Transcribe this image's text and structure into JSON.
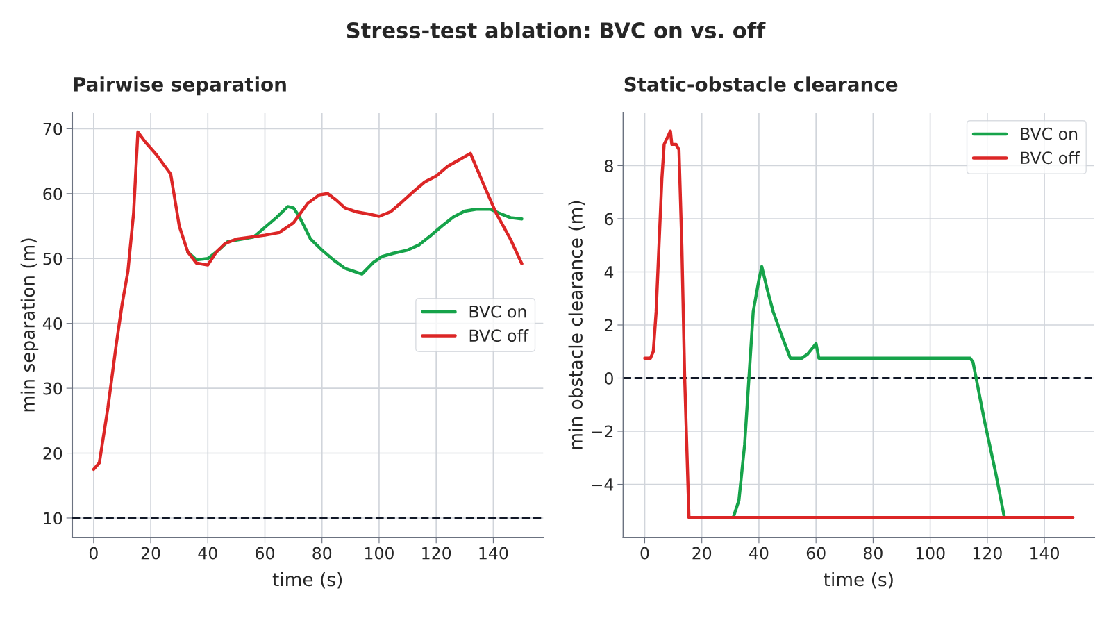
{
  "chart_data": [
    {
      "type": "line",
      "annotations": [
        "Stress-test ablation: BVC on vs. off"
      ],
      "title": "Pairwise separation",
      "xlabel": "time (s)",
      "ylabel": "min separation (m)",
      "xlim": [
        -7.5,
        157.5
      ],
      "ylim": [
        7,
        72.5
      ],
      "xticks": [
        0,
        20,
        40,
        60,
        80,
        100,
        120,
        140
      ],
      "yticks": [
        10,
        20,
        30,
        40,
        50,
        60,
        70
      ],
      "grid": true,
      "legend": "right",
      "line_style": "solid",
      "marker": "none",
      "ref_lines": [
        {
          "axis": "y",
          "value": 10,
          "color": "#111827",
          "line_style": "dashed"
        }
      ],
      "series": [
        {
          "name": "BVC on",
          "color": "#16a34a",
          "x": [
            33,
            36,
            40,
            43,
            47,
            52,
            56,
            60,
            64,
            68,
            70,
            72,
            76,
            80,
            84,
            88,
            94,
            98,
            101,
            105,
            110,
            114,
            118,
            122,
            126,
            130,
            134,
            139,
            142,
            146,
            150
          ],
          "values": [
            51,
            49.8,
            50,
            51,
            52.6,
            53,
            53.3,
            54.8,
            56.3,
            58,
            57.8,
            56.5,
            53,
            51.3,
            49.8,
            48.5,
            47.6,
            49.4,
            50.3,
            50.8,
            51.3,
            52.1,
            53.5,
            55,
            56.4,
            57.3,
            57.6,
            57.6,
            57,
            56.3,
            56.1
          ]
        },
        {
          "name": "BVC off",
          "color": "#dc2626",
          "x": [
            0,
            2,
            5,
            8,
            10,
            12,
            14,
            15.5,
            18,
            22,
            27,
            30,
            33,
            36,
            40,
            43,
            46,
            50,
            55,
            60,
            65,
            70,
            75,
            79,
            82,
            85,
            88,
            92,
            97,
            100,
            104,
            108,
            112,
            116,
            120,
            124,
            128,
            132,
            137,
            141,
            146,
            150
          ],
          "values": [
            17.5,
            18.5,
            27,
            37,
            43,
            48,
            57,
            69.5,
            68,
            66,
            63,
            55,
            51,
            49.3,
            49,
            51,
            52.3,
            53,
            53.3,
            53.6,
            54,
            55.5,
            58.5,
            59.8,
            60,
            59,
            57.8,
            57.2,
            56.8,
            56.5,
            57.2,
            58.7,
            60.3,
            61.8,
            62.7,
            64.2,
            65.2,
            66.2,
            61,
            57,
            53,
            49.2
          ]
        }
      ]
    },
    {
      "type": "line",
      "title": "Static-obstacle clearance",
      "xlabel": "time (s)",
      "ylabel": "min obstacle clearance (m)",
      "xlim": [
        -7.5,
        157.5
      ],
      "ylim": [
        -6,
        10
      ],
      "xticks": [
        0,
        20,
        40,
        60,
        80,
        100,
        120,
        140
      ],
      "yticks": [
        {
          "value": -4,
          "label": "−4"
        },
        {
          "value": -2,
          "label": "−2"
        },
        0,
        2,
        4,
        6,
        8
      ],
      "grid": true,
      "legend": "top right",
      "line_style": "solid",
      "marker": "none",
      "ref_lines": [
        {
          "axis": "y",
          "value": 0,
          "color": "#111827",
          "line_style": "dashed"
        }
      ],
      "series": [
        {
          "name": "BVC on",
          "color": "#16a34a",
          "x": [
            31,
            33,
            35,
            36.5,
            38,
            40,
            41,
            43,
            45,
            48,
            51,
            55,
            57,
            60,
            61,
            114,
            115,
            119,
            123,
            126
          ],
          "values": [
            -5.25,
            -4.6,
            -2.5,
            0,
            2.5,
            3.7,
            4.2,
            3.3,
            2.5,
            1.6,
            0.75,
            0.75,
            0.9,
            1.3,
            0.75,
            0.75,
            0.6,
            -1.6,
            -3.6,
            -5.25
          ]
        },
        {
          "name": "BVC off",
          "color": "#dc2626",
          "x": [
            0,
            2,
            3,
            4,
            5,
            6,
            6.8,
            9,
            9.5,
            11,
            12,
            13,
            14,
            15.5,
            150
          ],
          "values": [
            0.75,
            0.75,
            1.0,
            2.5,
            5,
            7.5,
            8.8,
            9.3,
            8.8,
            8.8,
            8.6,
            5,
            0,
            -5.25,
            -5.25
          ]
        }
      ]
    }
  ]
}
